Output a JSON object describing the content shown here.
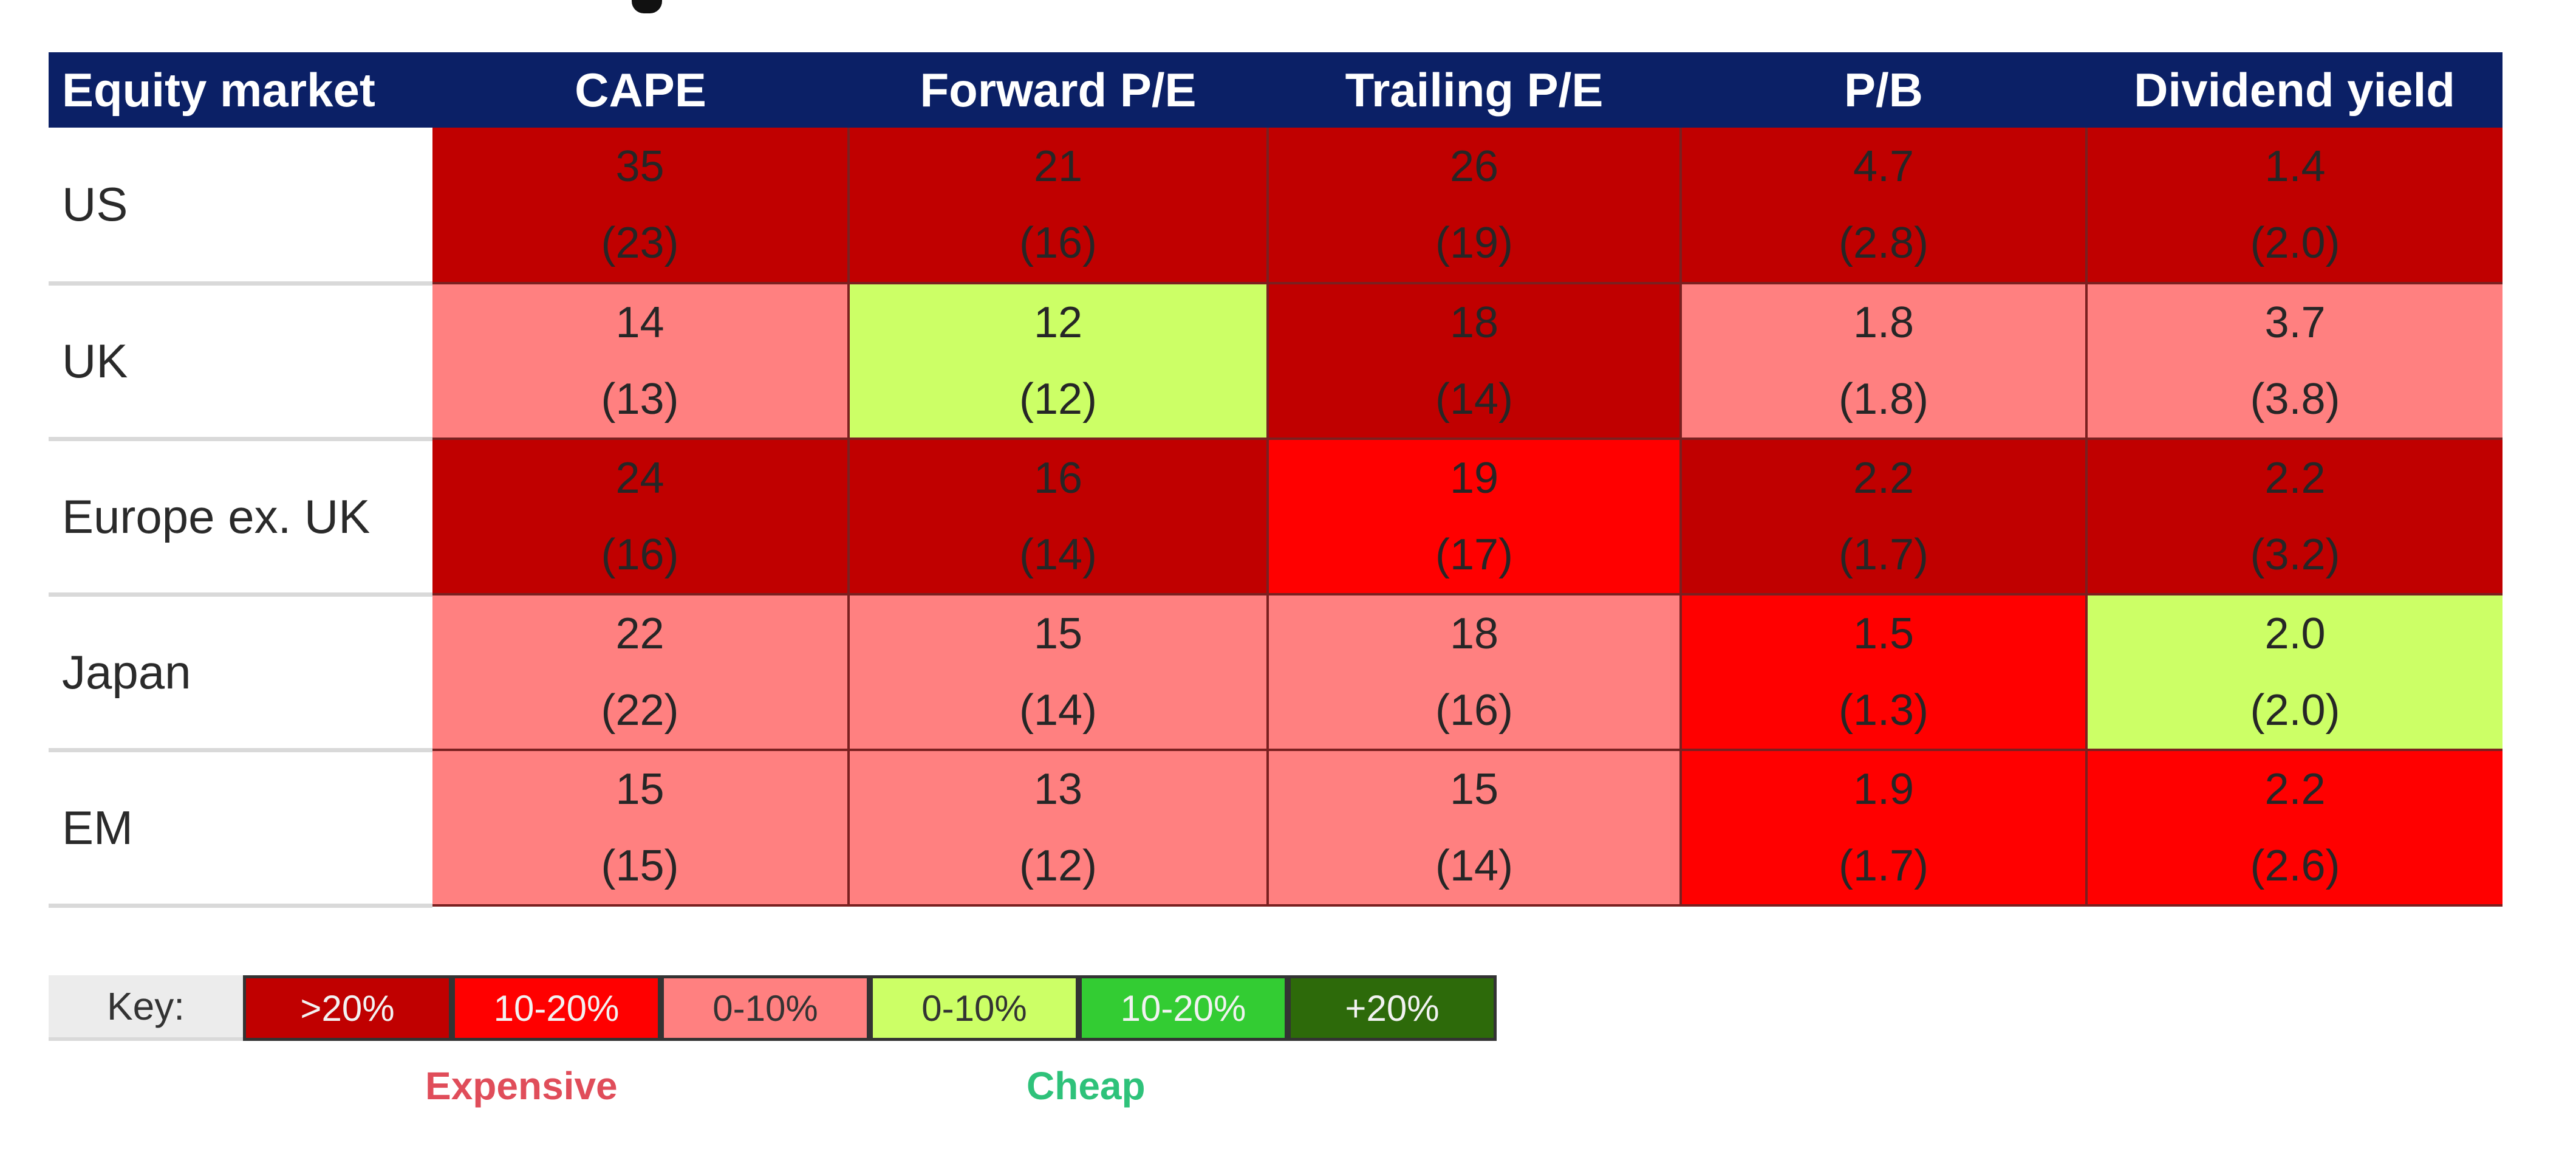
{
  "chart_data": {
    "type": "table",
    "columns": [
      "Equity market",
      "CAPE",
      "Forward P/E",
      "Trailing P/E",
      "P/B",
      "Dividend yield"
    ],
    "rows": [
      {
        "market": "US",
        "cells": [
          {
            "value": "35",
            "avg": "(23)",
            "color": "#c00000"
          },
          {
            "value": "21",
            "avg": "(16)",
            "color": "#c00000"
          },
          {
            "value": "26",
            "avg": "(19)",
            "color": "#c00000"
          },
          {
            "value": "4.7",
            "avg": "(2.8)",
            "color": "#c00000"
          },
          {
            "value": "1.4",
            "avg": "(2.0)",
            "color": "#c00000"
          }
        ]
      },
      {
        "market": "UK",
        "cells": [
          {
            "value": "14",
            "avg": "(13)",
            "color": "#ff8080"
          },
          {
            "value": "12",
            "avg": "(12)",
            "color": "#ccff66"
          },
          {
            "value": "18",
            "avg": "(14)",
            "color": "#c00000"
          },
          {
            "value": "1.8",
            "avg": "(1.8)",
            "color": "#ff8080"
          },
          {
            "value": "3.7",
            "avg": "(3.8)",
            "color": "#ff8080"
          }
        ]
      },
      {
        "market": "Europe ex. UK",
        "cells": [
          {
            "value": "24",
            "avg": "(16)",
            "color": "#c00000"
          },
          {
            "value": "16",
            "avg": "(14)",
            "color": "#c00000"
          },
          {
            "value": "19",
            "avg": "(17)",
            "color": "#ff0000"
          },
          {
            "value": "2.2",
            "avg": "(1.7)",
            "color": "#c00000"
          },
          {
            "value": "2.2",
            "avg": "(3.2)",
            "color": "#c00000"
          }
        ]
      },
      {
        "market": "Japan",
        "cells": [
          {
            "value": "22",
            "avg": "(22)",
            "color": "#ff8080"
          },
          {
            "value": "15",
            "avg": "(14)",
            "color": "#ff8080"
          },
          {
            "value": "18",
            "avg": "(16)",
            "color": "#ff8080"
          },
          {
            "value": "1.5",
            "avg": "(1.3)",
            "color": "#ff0000"
          },
          {
            "value": "2.0",
            "avg": "(2.0)",
            "color": "#ccff66"
          }
        ]
      },
      {
        "market": "EM",
        "cells": [
          {
            "value": "15",
            "avg": "(15)",
            "color": "#ff8080"
          },
          {
            "value": "13",
            "avg": "(12)",
            "color": "#ff8080"
          },
          {
            "value": "15",
            "avg": "(14)",
            "color": "#ff8080"
          },
          {
            "value": "1.9",
            "avg": "(1.7)",
            "color": "#ff0000"
          },
          {
            "value": "2.2",
            "avg": "(2.6)",
            "color": "#ff0000"
          }
        ]
      }
    ],
    "key": {
      "label": "Key:",
      "items": [
        {
          "label": ">20%",
          "color": "#c00000"
        },
        {
          "label": "10-20%",
          "color": "#ff0000"
        },
        {
          "label": "0-10%",
          "color": "#ff8080"
        },
        {
          "label": "0-10%",
          "color": "#ccff66"
        },
        {
          "label": "10-20%",
          "color": "#33cc33"
        },
        {
          "label": "+20%",
          "color": "#2d6a0a"
        }
      ],
      "expensive_label": "Expensive",
      "cheap_label": "Cheap"
    }
  }
}
